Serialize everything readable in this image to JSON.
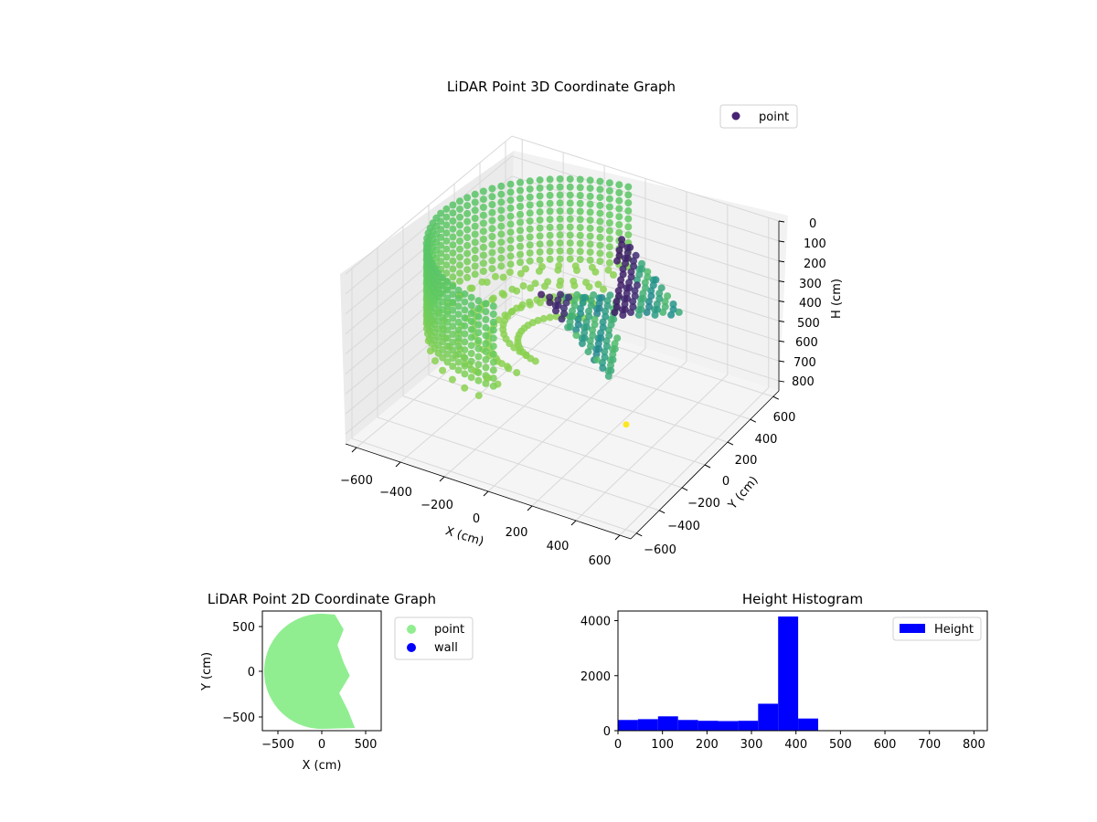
{
  "colors": {
    "viridis_dark": "#440154",
    "viridis_purple": "#3b2a6e",
    "viridis_teal": "#2a9d8f",
    "viridis_green": "#4dbd78",
    "viridis_yellowgreen": "#b5de2b",
    "viridis_yellow": "#fde725",
    "point_2d": "#90ee90",
    "wall_2d": "#0000ff",
    "histogram": "#0000ff"
  },
  "chart_data": [
    {
      "type": "scatter3d",
      "title": "LiDAR Point 3D Coordinate Graph",
      "xlabel": "X (cm)",
      "ylabel": "Y (cm)",
      "zlabel": "H (cm)",
      "xlim": [
        -650,
        650
      ],
      "ylim": [
        -650,
        650
      ],
      "zlim": [
        0,
        850
      ],
      "zinverted": true,
      "xticks": [
        "−600",
        "−400",
        "−200",
        "0",
        "200",
        "400",
        "600"
      ],
      "yticks": [
        "−600",
        "−400",
        "−200",
        "0",
        "200",
        "400",
        "600"
      ],
      "zticks": [
        "0",
        "100",
        "200",
        "300",
        "400",
        "500",
        "600",
        "700",
        "800"
      ],
      "legend": [
        "point"
      ],
      "legend_position": "top-right",
      "grid": true,
      "colormap": "viridis",
      "description_of_shape": "half-cylindrical shell of points, radius ~600 cm, heights 0-450 cm, colored by height; origin marker in yellow",
      "origin_marker": {
        "x": 0,
        "y": 0,
        "h": 0
      }
    },
    {
      "type": "scatter",
      "title": "LiDAR Point 2D Coordinate Graph",
      "xlabel": "X (cm)",
      "ylabel": "Y (cm)",
      "xlim": [
        -680,
        680
      ],
      "ylim": [
        -680,
        680
      ],
      "xticks": [
        "−500",
        "0",
        "500"
      ],
      "yticks": [
        "500",
        "0",
        "−500"
      ],
      "legend": [
        "point",
        "wall"
      ],
      "legend_position": "outside-right",
      "series": [
        {
          "name": "point",
          "region": "filled half-disk, x from -600 to ~400, y from -650 to 650"
        },
        {
          "name": "wall",
          "points": []
        }
      ]
    },
    {
      "type": "bar",
      "title": "Height Histogram",
      "xlim": [
        0,
        830
      ],
      "ylim": [
        0,
        4350
      ],
      "xticks": [
        "0",
        "100",
        "200",
        "300",
        "400",
        "500",
        "600",
        "700",
        "800"
      ],
      "yticks": [
        "0",
        "2000",
        "4000"
      ],
      "legend": [
        "Height"
      ],
      "legend_position": "top-right",
      "bin_width": 45,
      "bins": [
        {
          "x0": 0,
          "count": 390
        },
        {
          "x0": 45,
          "count": 420
        },
        {
          "x0": 90,
          "count": 520
        },
        {
          "x0": 135,
          "count": 390
        },
        {
          "x0": 180,
          "count": 360
        },
        {
          "x0": 225,
          "count": 350
        },
        {
          "x0": 270,
          "count": 360
        },
        {
          "x0": 315,
          "count": 980
        },
        {
          "x0": 360,
          "count": 4150
        },
        {
          "x0": 405,
          "count": 440
        }
      ]
    }
  ]
}
